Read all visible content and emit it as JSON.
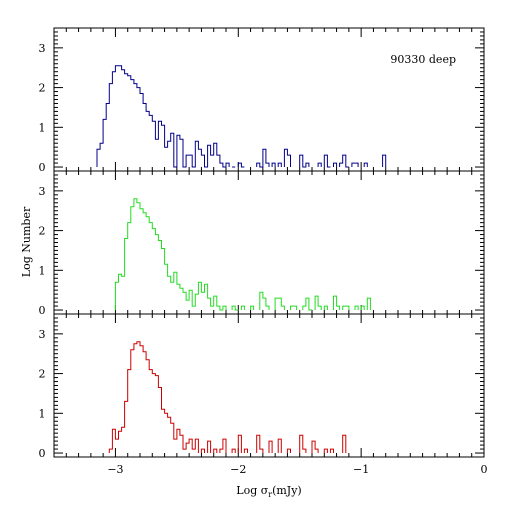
{
  "chart_data": [
    {
      "type": "histogram",
      "panel": "top",
      "annotation": "90330 deep",
      "color": "#00008b",
      "x_range": [
        -3.5,
        0
      ],
      "y_range": [
        -0.1,
        3.5
      ],
      "y_ticks": [
        "0",
        "1",
        "2",
        "3"
      ],
      "bin_width": 0.025,
      "bins": [
        {
          "x": -3.15,
          "y": 0.45
        },
        {
          "x": -3.125,
          "y": 0.6
        },
        {
          "x": -3.1,
          "y": 1.2
        },
        {
          "x": -3.075,
          "y": 1.6
        },
        {
          "x": -3.05,
          "y": 2.1
        },
        {
          "x": -3.025,
          "y": 2.4
        },
        {
          "x": -3.0,
          "y": 2.55
        },
        {
          "x": -2.975,
          "y": 2.55
        },
        {
          "x": -2.95,
          "y": 2.45
        },
        {
          "x": -2.925,
          "y": 2.35
        },
        {
          "x": -2.9,
          "y": 2.3
        },
        {
          "x": -2.875,
          "y": 2.2
        },
        {
          "x": -2.85,
          "y": 2.1
        },
        {
          "x": -2.825,
          "y": 2.0
        },
        {
          "x": -2.8,
          "y": 1.85
        },
        {
          "x": -2.775,
          "y": 1.6
        },
        {
          "x": -2.75,
          "y": 1.4
        },
        {
          "x": -2.725,
          "y": 1.3
        },
        {
          "x": -2.7,
          "y": 1.15
        },
        {
          "x": -2.675,
          "y": 0.7
        },
        {
          "x": -2.65,
          "y": 1.15
        },
        {
          "x": -2.625,
          "y": 1.05
        },
        {
          "x": -2.6,
          "y": 0.5
        },
        {
          "x": -2.575,
          "y": 0.65
        },
        {
          "x": -2.55,
          "y": 0.85
        },
        {
          "x": -2.525,
          "y": 0.0
        },
        {
          "x": -2.5,
          "y": 0.8
        },
        {
          "x": -2.475,
          "y": 0.7
        },
        {
          "x": -2.45,
          "y": 0.0
        },
        {
          "x": -2.425,
          "y": 0.3
        },
        {
          "x": -2.4,
          "y": 0.3
        },
        {
          "x": -2.375,
          "y": 0.0
        },
        {
          "x": -2.35,
          "y": 0.65
        },
        {
          "x": -2.325,
          "y": 0.45
        },
        {
          "x": -2.3,
          "y": 0.3
        },
        {
          "x": -2.275,
          "y": 0.0
        },
        {
          "x": -2.25,
          "y": 0.55
        },
        {
          "x": -2.225,
          "y": 0.3
        },
        {
          "x": -2.2,
          "y": 0.6
        },
        {
          "x": -2.175,
          "y": 0.3
        },
        {
          "x": -2.15,
          "y": 0.1
        },
        {
          "x": -2.125,
          "y": 0.0
        },
        {
          "x": -2.1,
          "y": 0.1
        },
        {
          "x": -2.05,
          "y": 0.0
        },
        {
          "x": -2.0,
          "y": 0.1
        },
        {
          "x": -1.975,
          "y": 0.0
        },
        {
          "x": -1.85,
          "y": 0.1
        },
        {
          "x": -1.825,
          "y": 0.0
        },
        {
          "x": -1.8,
          "y": 0.45
        },
        {
          "x": -1.775,
          "y": 0.1
        },
        {
          "x": -1.725,
          "y": 0.1
        },
        {
          "x": -1.675,
          "y": 0.1
        },
        {
          "x": -1.625,
          "y": 0.45
        },
        {
          "x": -1.6,
          "y": 0.3
        },
        {
          "x": -1.5,
          "y": 0.3
        },
        {
          "x": -1.475,
          "y": 0.0
        },
        {
          "x": -1.45,
          "y": 0.1
        },
        {
          "x": -1.35,
          "y": 0.1
        },
        {
          "x": -1.3,
          "y": 0.3
        },
        {
          "x": -1.275,
          "y": 0.0
        },
        {
          "x": -1.225,
          "y": 0.1
        },
        {
          "x": -1.175,
          "y": 0.1
        },
        {
          "x": -1.15,
          "y": 0.3
        },
        {
          "x": -1.125,
          "y": 0.0
        },
        {
          "x": -1.075,
          "y": 0.1
        },
        {
          "x": -1.05,
          "y": 0.1
        },
        {
          "x": -0.975,
          "y": 0.1
        },
        {
          "x": -0.825,
          "y": 0.3
        }
      ]
    },
    {
      "type": "histogram",
      "panel": "middle",
      "color": "#22dd22",
      "x_range": [
        -3.5,
        0
      ],
      "y_range": [
        -0.1,
        3.5
      ],
      "y_ticks": [
        "0",
        "1",
        "2",
        "3"
      ],
      "ylabel": "Log Number",
      "bin_width": 0.025,
      "bins": [
        {
          "x": -3.0,
          "y": 0.7
        },
        {
          "x": -2.975,
          "y": 0.9
        },
        {
          "x": -2.95,
          "y": 0.85
        },
        {
          "x": -2.925,
          "y": 1.8
        },
        {
          "x": -2.9,
          "y": 2.2
        },
        {
          "x": -2.875,
          "y": 2.6
        },
        {
          "x": -2.85,
          "y": 2.8
        },
        {
          "x": -2.825,
          "y": 2.7
        },
        {
          "x": -2.8,
          "y": 2.55
        },
        {
          "x": -2.775,
          "y": 2.45
        },
        {
          "x": -2.75,
          "y": 2.35
        },
        {
          "x": -2.725,
          "y": 2.2
        },
        {
          "x": -2.7,
          "y": 2.05
        },
        {
          "x": -2.675,
          "y": 1.9
        },
        {
          "x": -2.65,
          "y": 1.75
        },
        {
          "x": -2.625,
          "y": 1.55
        },
        {
          "x": -2.6,
          "y": 1.15
        },
        {
          "x": -2.575,
          "y": 0.85
        },
        {
          "x": -2.55,
          "y": 0.7
        },
        {
          "x": -2.525,
          "y": 0.95
        },
        {
          "x": -2.5,
          "y": 0.65
        },
        {
          "x": -2.475,
          "y": 0.55
        },
        {
          "x": -2.45,
          "y": 0.45
        },
        {
          "x": -2.425,
          "y": 0.25
        },
        {
          "x": -2.4,
          "y": 0.5
        },
        {
          "x": -2.375,
          "y": 0.1
        },
        {
          "x": -2.35,
          "y": 0.4
        },
        {
          "x": -2.325,
          "y": 0.7
        },
        {
          "x": -2.3,
          "y": 0.45
        },
        {
          "x": -2.275,
          "y": 0.65
        },
        {
          "x": -2.25,
          "y": 0.3
        },
        {
          "x": -2.225,
          "y": 0.1
        },
        {
          "x": -2.2,
          "y": 0.35
        },
        {
          "x": -2.175,
          "y": 0.1
        },
        {
          "x": -2.15,
          "y": 0.0
        },
        {
          "x": -2.125,
          "y": 0.1
        },
        {
          "x": -2.05,
          "y": 0.1
        },
        {
          "x": -2.025,
          "y": 0.0
        },
        {
          "x": -1.975,
          "y": 0.1
        },
        {
          "x": -1.9,
          "y": 0.1
        },
        {
          "x": -1.825,
          "y": 0.45
        },
        {
          "x": -1.8,
          "y": 0.3
        },
        {
          "x": -1.775,
          "y": 0.1
        },
        {
          "x": -1.7,
          "y": 0.3
        },
        {
          "x": -1.675,
          "y": 0.3
        },
        {
          "x": -1.65,
          "y": 0.1
        },
        {
          "x": -1.575,
          "y": 0.1
        },
        {
          "x": -1.55,
          "y": 0.1
        },
        {
          "x": -1.475,
          "y": 0.1
        },
        {
          "x": -1.45,
          "y": 0.3
        },
        {
          "x": -1.425,
          "y": 0.0
        },
        {
          "x": -1.375,
          "y": 0.35
        },
        {
          "x": -1.35,
          "y": 0.1
        },
        {
          "x": -1.3,
          "y": 0.1
        },
        {
          "x": -1.225,
          "y": 0.35
        },
        {
          "x": -1.2,
          "y": 0.1
        },
        {
          "x": -1.15,
          "y": 0.1
        },
        {
          "x": -1.125,
          "y": 0.1
        },
        {
          "x": -1.05,
          "y": 0.1
        },
        {
          "x": -1.0,
          "y": 0.1
        },
        {
          "x": -0.95,
          "y": 0.3
        }
      ]
    },
    {
      "type": "histogram",
      "panel": "bottom",
      "color": "#cc0000",
      "x_range": [
        -3.5,
        0
      ],
      "y_range": [
        -0.1,
        3.5
      ],
      "y_ticks": [
        "0",
        "1",
        "2",
        "3"
      ],
      "xlabel": "Log σ_r(mJy)",
      "x_ticks": [
        "−3",
        "−2",
        "−1",
        "0"
      ],
      "bin_width": 0.025,
      "bins": [
        {
          "x": -3.05,
          "y": 0.1
        },
        {
          "x": -3.025,
          "y": 0.6
        },
        {
          "x": -3.0,
          "y": 0.35
        },
        {
          "x": -2.975,
          "y": 0.55
        },
        {
          "x": -2.95,
          "y": 0.65
        },
        {
          "x": -2.925,
          "y": 1.3
        },
        {
          "x": -2.9,
          "y": 2.1
        },
        {
          "x": -2.875,
          "y": 2.6
        },
        {
          "x": -2.85,
          "y": 2.75
        },
        {
          "x": -2.825,
          "y": 2.8
        },
        {
          "x": -2.8,
          "y": 2.7
        },
        {
          "x": -2.775,
          "y": 2.55
        },
        {
          "x": -2.75,
          "y": 2.35
        },
        {
          "x": -2.725,
          "y": 2.1
        },
        {
          "x": -2.7,
          "y": 2.0
        },
        {
          "x": -2.675,
          "y": 1.95
        },
        {
          "x": -2.65,
          "y": 1.65
        },
        {
          "x": -2.625,
          "y": 1.1
        },
        {
          "x": -2.6,
          "y": 1.0
        },
        {
          "x": -2.575,
          "y": 0.9
        },
        {
          "x": -2.55,
          "y": 0.75
        },
        {
          "x": -2.525,
          "y": 0.35
        },
        {
          "x": -2.5,
          "y": 0.6
        },
        {
          "x": -2.475,
          "y": 0.45
        },
        {
          "x": -2.45,
          "y": 0.1
        },
        {
          "x": -2.425,
          "y": 0.25
        },
        {
          "x": -2.4,
          "y": 0.35
        },
        {
          "x": -2.375,
          "y": 0.1
        },
        {
          "x": -2.35,
          "y": 0.35
        },
        {
          "x": -2.3,
          "y": 0.1
        },
        {
          "x": -2.25,
          "y": 0.3
        },
        {
          "x": -2.2,
          "y": 0.1
        },
        {
          "x": -2.15,
          "y": 0.1
        },
        {
          "x": -2.125,
          "y": 0.35
        },
        {
          "x": -2.05,
          "y": 0.1
        },
        {
          "x": -2.0,
          "y": 0.45
        },
        {
          "x": -1.95,
          "y": 0.1
        },
        {
          "x": -1.85,
          "y": 0.45
        },
        {
          "x": -1.825,
          "y": 0.1
        },
        {
          "x": -1.75,
          "y": 0.3
        },
        {
          "x": -1.675,
          "y": 0.35
        },
        {
          "x": -1.6,
          "y": 0.1
        },
        {
          "x": -1.5,
          "y": 0.45
        },
        {
          "x": -1.475,
          "y": 0.1
        },
        {
          "x": -1.4,
          "y": 0.3
        },
        {
          "x": -1.375,
          "y": 0.1
        },
        {
          "x": -1.3,
          "y": 0.1
        },
        {
          "x": -1.25,
          "y": 0.1
        },
        {
          "x": -1.15,
          "y": 0.45
        }
      ]
    }
  ]
}
